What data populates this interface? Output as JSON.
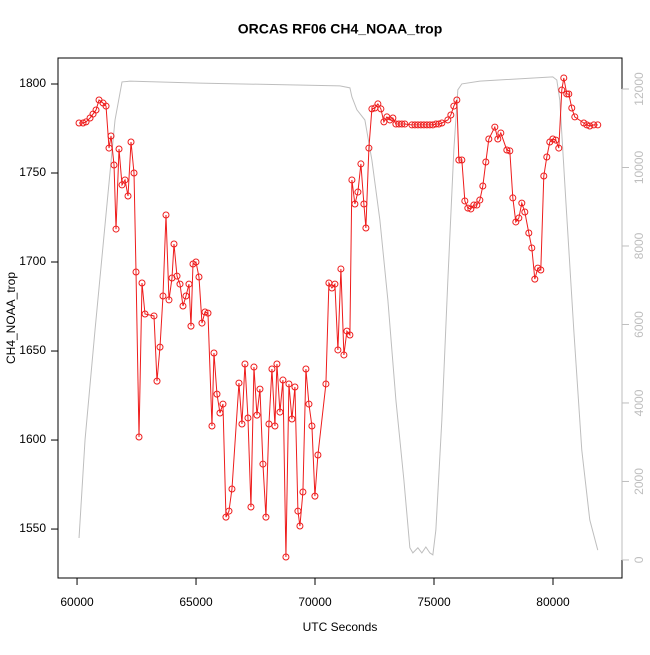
{
  "chart_data": {
    "type": "line",
    "title": "ORCAS RF06 CH4_NOAA_trop",
    "x_label": "UTC Seconds",
    "y_label": "CH4_NOAA_trop",
    "xlim": [
      59200,
      82900
    ],
    "xticks": [
      60000,
      65000,
      70000,
      75000,
      80000
    ],
    "ylim": [
      1522.5,
      1814.6
    ],
    "yticks": [
      1550,
      1600,
      1650,
      1700,
      1750,
      1800
    ],
    "y2lim": [
      -460,
      12790
    ],
    "y2ticks": [
      0,
      2000,
      4000,
      6000,
      8000,
      10000,
      12000
    ],
    "series": [
      {
        "color": "#ee1c1c",
        "markers": true,
        "x": [
          60084,
          60252,
          60378,
          60546,
          60672,
          60798,
          60924,
          61092,
          61218,
          61344,
          61428,
          61554,
          61638,
          61764,
          61890,
          62016,
          62142,
          62268,
          62394,
          62478,
          62604,
          62730,
          62856,
          63234,
          63360,
          63486,
          63612,
          63738,
          63864,
          63990,
          64074,
          64200,
          64326,
          64452,
          64578,
          64704,
          64788,
          64872,
          64998,
          65124,
          65250,
          65376,
          65502,
          65670,
          65754,
          65880,
          66006,
          66132,
          66258,
          66384,
          66510,
          66804,
          66930,
          67056,
          67182,
          67308,
          67434,
          67560,
          67686,
          67812,
          67938,
          68064,
          68190,
          68316,
          68400,
          68526,
          68652,
          68778,
          68904,
          69030,
          69156,
          69282,
          69366,
          69492,
          69618,
          69744,
          69870,
          69996,
          70122,
          70458,
          70584,
          70710,
          70836,
          70962,
          71088,
          71214,
          71340,
          71466,
          71550,
          71676,
          71802,
          71928,
          72054,
          72138,
          72264,
          72390,
          72516,
          72642,
          72768,
          72894,
          73020,
          73146,
          73272,
          73398,
          73524,
          73650,
          73776,
          74070,
          74196,
          74322,
          74448,
          74574,
          74700,
          74826,
          74952,
          75078,
          75204,
          75330,
          75582,
          75708,
          75834,
          75960,
          76044,
          76170,
          76296,
          76422,
          76548,
          76674,
          76800,
          76926,
          77052,
          77178,
          77304,
          77556,
          77682,
          77808,
          78060,
          78186,
          78312,
          78438,
          78564,
          78690,
          78816,
          78984,
          79110,
          79236,
          79362,
          79488,
          79614,
          79740,
          79866,
          79992,
          80118,
          80244,
          80370,
          80454,
          80580,
          80664,
          80790,
          80916,
          81294,
          81420,
          81546,
          81714,
          81882
        ],
        "values": [
          1778.1,
          1778.1,
          1778.7,
          1780.9,
          1783.1,
          1785.4,
          1791.0,
          1789.3,
          1787.6,
          1764.0,
          1770.8,
          1754.5,
          1718.5,
          1763.5,
          1743.3,
          1746.1,
          1737.1,
          1767.4,
          1750.0,
          1694.4,
          1601.7,
          1688.2,
          1670.8,
          1669.7,
          1633.1,
          1652.2,
          1680.9,
          1726.4,
          1678.7,
          1691.0,
          1710.1,
          1692.1,
          1687.6,
          1675.3,
          1680.9,
          1687.6,
          1664.0,
          1698.9,
          1700.0,
          1691.6,
          1665.7,
          1671.9,
          1671.3,
          1607.9,
          1648.9,
          1625.8,
          1615.2,
          1620.2,
          1556.7,
          1560.1,
          1572.5,
          1632.0,
          1609.0,
          1642.7,
          1612.4,
          1562.4,
          1641.0,
          1614.0,
          1628.6,
          1586.5,
          1556.7,
          1609.0,
          1639.9,
          1607.9,
          1642.7,
          1615.7,
          1633.7,
          1534.3,
          1631.5,
          1611.8,
          1629.8,
          1560.1,
          1551.7,
          1570.8,
          1639.9,
          1620.2,
          1607.9,
          1568.5,
          1591.6,
          1631.5,
          1688.2,
          1685.4,
          1687.6,
          1650.6,
          1696.1,
          1647.8,
          1661.2,
          1659.0,
          1746.1,
          1732.6,
          1739.3,
          1755.1,
          1732.6,
          1719.1,
          1764.0,
          1786.0,
          1786.5,
          1788.8,
          1786.0,
          1778.7,
          1781.5,
          1779.8,
          1780.9,
          1777.5,
          1777.5,
          1777.5,
          1777.5,
          1777.0,
          1777.0,
          1777.0,
          1777.0,
          1777.0,
          1777.0,
          1777.0,
          1777.0,
          1777.5,
          1777.5,
          1778.1,
          1779.8,
          1782.6,
          1787.6,
          1791.0,
          1757.3,
          1757.3,
          1734.3,
          1730.3,
          1729.8,
          1732.0,
          1732.0,
          1734.8,
          1742.7,
          1756.2,
          1769.1,
          1775.8,
          1769.1,
          1772.5,
          1762.9,
          1762.4,
          1736.0,
          1722.5,
          1724.7,
          1733.1,
          1728.1,
          1716.3,
          1707.9,
          1690.4,
          1696.6,
          1695.5,
          1748.3,
          1759.0,
          1767.4,
          1769.1,
          1768.5,
          1764.0,
          1796.6,
          1803.4,
          1794.4,
          1794.4,
          1786.5,
          1781.5,
          1778.1,
          1777.0,
          1776.4,
          1777.0,
          1777.0
        ]
      },
      {
        "color": "#bebebe",
        "markers": false,
        "axis": "y2",
        "x": [
          60084,
          60336,
          60756,
          61176,
          61596,
          61890,
          62226,
          65166,
          71046,
          71466,
          71550,
          71760,
          72096,
          72390,
          72726,
          73062,
          73398,
          73734,
          73986,
          74112,
          74322,
          74490,
          74658,
          74826,
          74952,
          75078,
          75330,
          75582,
          75834,
          76002,
          76170,
          76926,
          79992,
          80160,
          80286,
          80538,
          80874,
          81210,
          81546,
          81882
        ],
        "values": [
          560,
          3060,
          5860,
          8540,
          11210,
          12180,
          12200,
          12150,
          12080,
          12030,
          11800,
          11470,
          11210,
          10190,
          8660,
          6620,
          4080,
          2040,
          310,
          180,
          310,
          180,
          330,
          180,
          130,
          760,
          3570,
          7130,
          10450,
          11980,
          12130,
          12200,
          12310,
          12230,
          11720,
          9170,
          5860,
          2800,
          1020,
          250
        ]
      }
    ]
  }
}
